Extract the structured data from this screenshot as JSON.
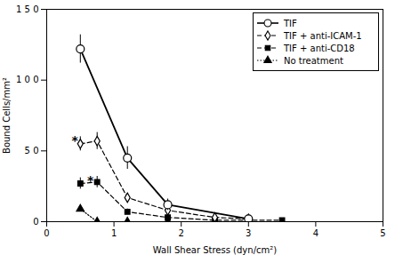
{
  "chart_data": {
    "type": "line",
    "title": "",
    "xlabel": "Wall Shear Stress (dyn/cm²)",
    "ylabel": "Bound Cells/mm²",
    "xlim": [
      0,
      5
    ],
    "ylim": [
      0,
      150
    ],
    "xticks": [
      0,
      1,
      2,
      3,
      4,
      5
    ],
    "yticks": [
      0,
      {
        "value": 50,
        "label": "5 0"
      },
      {
        "value": 100,
        "label": "1 0 0"
      },
      {
        "value": 150,
        "label": "1 5 0"
      }
    ],
    "grid": false,
    "legend": "upper right",
    "series": [
      {
        "name": "TIF",
        "color": "#000000",
        "marker": "circle-open",
        "line_style": "solid",
        "x": [
          0.5,
          1.2,
          1.8,
          3.0
        ],
        "values": [
          122,
          45,
          12,
          2
        ],
        "errors": [
          10,
          8,
          4,
          1
        ]
      },
      {
        "name": "TIF + anti-ICAM-1",
        "color": "#000000",
        "marker": "diamond-open",
        "line_style": "dashed",
        "x": [
          0.5,
          0.75,
          1.2,
          1.8,
          2.5,
          3.0
        ],
        "values": [
          55,
          57,
          17,
          8,
          3,
          2
        ],
        "errors": [
          5,
          6,
          3,
          2,
          1,
          1
        ]
      },
      {
        "name": "TIF + anti-CD18",
        "color": "#000000",
        "marker": "square",
        "line_style": "dashed",
        "x": [
          0.5,
          0.75,
          1.2,
          1.8,
          2.5,
          3.5
        ],
        "values": [
          27,
          28,
          7,
          3,
          1,
          1
        ],
        "errors": [
          4,
          4,
          2,
          1,
          0.5,
          0.5
        ]
      },
      {
        "name": "No treatment",
        "color": "#000000",
        "marker": "triangle",
        "line_style": "dotted",
        "x": [
          0.5,
          0.75,
          1.2,
          1.8,
          2.5
        ],
        "values": [
          9,
          0,
          0,
          0,
          0
        ],
        "errors": [
          2,
          0,
          0,
          0,
          0
        ]
      }
    ],
    "annotations": [
      {
        "text": "*",
        "x": 0.42,
        "y": 57
      },
      {
        "text": "*",
        "x": 0.65,
        "y": 29
      }
    ]
  }
}
